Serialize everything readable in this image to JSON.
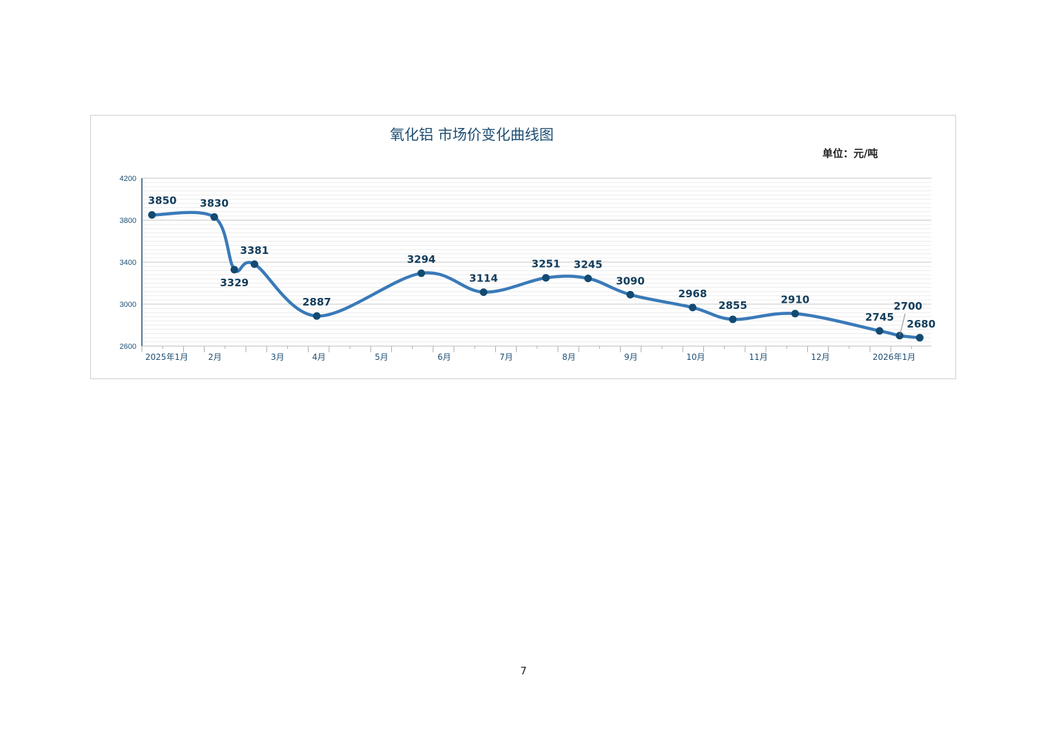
{
  "chart_data": {
    "type": "line",
    "title": "氧化铝 市场价变化曲线图",
    "unit": "单位：元/吨",
    "ylim": [
      2600,
      4200
    ],
    "yticks": [
      2600,
      3000,
      3400,
      3800,
      4200
    ],
    "xticklabels": [
      "2025年1月",
      "2月",
      "3月",
      "4月",
      "5月",
      "6月",
      "7月",
      "8月",
      "9月",
      "10月",
      "11月",
      "12月",
      "2026年1月"
    ],
    "grid": true,
    "line_color": "#3a7ab8",
    "marker_color": "#134a72",
    "label_color": "#133d5c",
    "points": [
      {
        "date": "2025-01-06",
        "value": 3850,
        "label": "above"
      },
      {
        "date": "2025-02-06",
        "value": 3830,
        "label": "above"
      },
      {
        "date": "2025-02-16",
        "value": 3329,
        "label": "below"
      },
      {
        "date": "2025-02-26",
        "value": 3381,
        "label": "above"
      },
      {
        "date": "2025-03-29",
        "value": 2887,
        "label": "above"
      },
      {
        "date": "2025-05-20",
        "value": 3294,
        "label": "above"
      },
      {
        "date": "2025-06-20",
        "value": 3114,
        "label": "above"
      },
      {
        "date": "2025-07-21",
        "value": 3251,
        "label": "above"
      },
      {
        "date": "2025-08-11",
        "value": 3245,
        "label": "above"
      },
      {
        "date": "2025-09-01",
        "value": 3090,
        "label": "above"
      },
      {
        "date": "2025-10-02",
        "value": 2968,
        "label": "above"
      },
      {
        "date": "2025-10-22",
        "value": 2855,
        "label": "above"
      },
      {
        "date": "2025-11-22",
        "value": 2910,
        "label": "above"
      },
      {
        "date": "2026-01-03",
        "value": 2745,
        "label": "above"
      },
      {
        "date": "2026-01-13",
        "value": 2700,
        "label": "above"
      },
      {
        "date": "2026-01-23",
        "value": 2680,
        "label": "above"
      }
    ]
  },
  "page_number": "7"
}
